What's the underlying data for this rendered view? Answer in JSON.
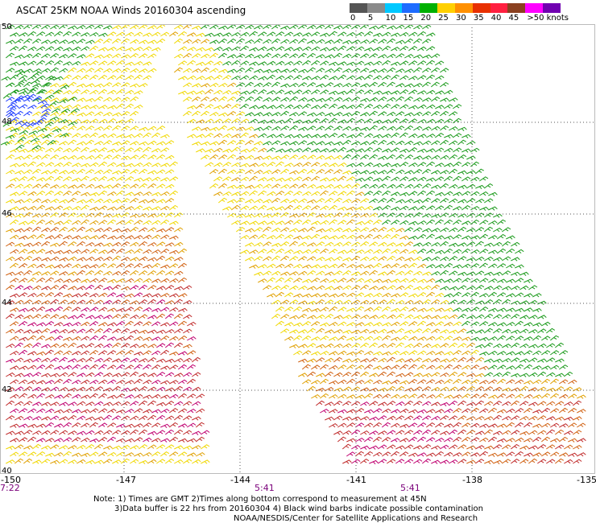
{
  "title": "ASCAT 25KM NOAA Winds 20160304 ascending",
  "legend": {
    "unit_label": ">50 knots",
    "stops": [
      "0",
      "5",
      "10",
      "15",
      "20",
      "25",
      "30",
      "35",
      "40",
      "45"
    ],
    "colors": [
      "#555555",
      "#8a8a8a",
      "#00c8ff",
      "#1e6cff",
      "#00b000",
      "#ffd000",
      "#ff9000",
      "#e83000",
      "#ff2040",
      "#8a4020",
      "#ff00ff",
      "#7000b0"
    ]
  },
  "map": {
    "lon_labels": [
      "-150",
      "-147",
      "-144",
      "-141",
      "-138",
      "-135"
    ],
    "lat_labels": [
      "50",
      "48",
      "46",
      "44",
      "42",
      "40"
    ],
    "time_labels": [
      "7:22",
      "5:41",
      "5:41"
    ],
    "barb_colors": {
      "calm": "#1e3cff",
      "green": "#1a9a1a",
      "yellow": "#f0d800",
      "orange": "#e0a000",
      "darkorange": "#d06010",
      "red": "#c02a2a",
      "magenta": "#c00070"
    }
  },
  "notes": {
    "line1": "Note: 1) Times are GMT 2)Times along bottom correspond to measurement at 45N",
    "line2": "3)Data buffer is 22 hrs from 20160304 4) Black wind barbs indicate possible contamination",
    "line3": "NOAA/NESDIS/Center for Satellite Applications and Research"
  }
}
